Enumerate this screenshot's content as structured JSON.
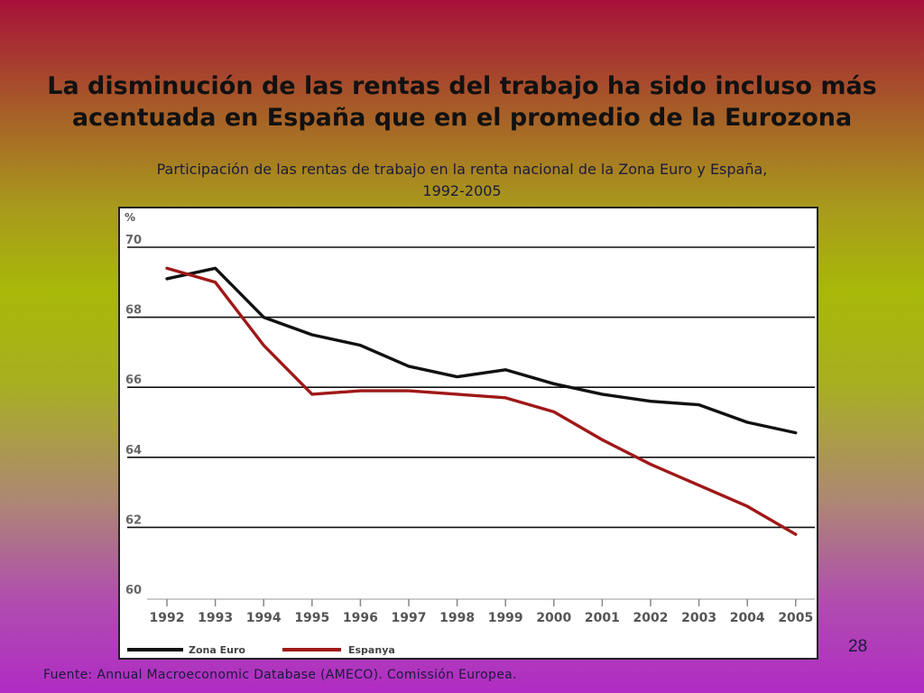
{
  "slide": {
    "title_line1": "La disminución de las rentas del trabajo ha sido incluso más",
    "title_line2": "acentuada en España que en el promedio de la Eurozona",
    "subtitle_line1": "Participación de las rentas de trabajo en la renta nacional de la Zona Euro y España,",
    "subtitle_line2": "1992-2005",
    "page_number": "28",
    "source": "Fuente: Annual Macroeconomic Database (AMECO). Comissión Europea."
  },
  "chart_data": {
    "type": "line",
    "ylabel": "%",
    "ylim": [
      60,
      70
    ],
    "yticks": [
      "70",
      "68",
      "66",
      "64",
      "62",
      "60"
    ],
    "grid": true,
    "legend_position": "bottom-left",
    "categories": [
      "1992",
      "1993",
      "1994",
      "1995",
      "1996",
      "1997",
      "1998",
      "1999",
      "2000",
      "2001",
      "2002",
      "2003",
      "2004",
      "2005"
    ],
    "series": [
      {
        "name": "Zona Euro",
        "color": "#111111",
        "values": [
          69.1,
          69.4,
          68.0,
          67.5,
          67.2,
          66.6,
          66.3,
          66.5,
          66.1,
          65.8,
          65.6,
          65.5,
          65.0,
          64.7
        ]
      },
      {
        "name": "Espanya",
        "color": "#a01818",
        "values": [
          69.4,
          69.0,
          67.2,
          65.8,
          65.9,
          65.9,
          65.8,
          65.7,
          65.3,
          64.5,
          63.8,
          63.2,
          62.6,
          61.8
        ]
      }
    ]
  }
}
